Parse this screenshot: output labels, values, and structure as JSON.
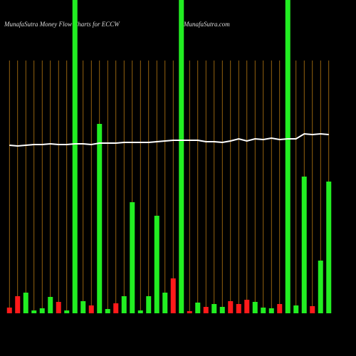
{
  "chart_data": {
    "type": "bar",
    "title": "MunafaSutra  Money Flow  Charts for ECCW",
    "subtitle": "MunafaSutra.com",
    "categories": [
      null,
      null,
      null,
      null,
      null,
      null,
      null,
      null,
      null,
      null,
      null,
      null,
      null,
      null,
      null,
      null,
      null,
      null,
      null,
      null,
      null,
      null,
      null,
      null,
      null,
      null,
      null,
      null,
      null,
      null,
      null,
      null,
      null,
      null,
      null,
      null,
      null,
      null,
      null,
      null
    ],
    "values": [
      8,
      24,
      29,
      4,
      7,
      23,
      16,
      4,
      440,
      17,
      11,
      266,
      6,
      14,
      24,
      156,
      4,
      24,
      137,
      29,
      49,
      440,
      3,
      15,
      9,
      13,
      9,
      17,
      13,
      19,
      16,
      8,
      7,
      13,
      440,
      11,
      192,
      10,
      74,
      185
    ],
    "colors": [
      "#ff1a1a",
      "#ff1a1a",
      "#22ee22",
      "#22ee22",
      "#22ee22",
      "#22ee22",
      "#ff1a1a",
      "#22ee22",
      "#22ee22",
      "#22ee22",
      "#ff1a1a",
      "#22ee22",
      "#22ee22",
      "#ff1a1a",
      "#22ee22",
      "#22ee22",
      "#22ee22",
      "#22ee22",
      "#22ee22",
      "#22ee22",
      "#ff1a1a",
      "#22ee22",
      "#ff1a1a",
      "#22ee22",
      "#ff1a1a",
      "#22ee22",
      "#22ee22",
      "#ff1a1a",
      "#ff1a1a",
      "#ff1a1a",
      "#22ee22",
      "#22ee22",
      "#22ee22",
      "#ff1a1a",
      "#22ee22",
      "#22ee22",
      "#22ee22",
      "#ff1a1a",
      "#22ee22",
      "#22ee22"
    ],
    "line_values": [
      236,
      235,
      236,
      237,
      237,
      238,
      237,
      237,
      238,
      238,
      237,
      239,
      239,
      239,
      240,
      240,
      240,
      240,
      241,
      242,
      243,
      243,
      243,
      243,
      241,
      241,
      240,
      242,
      245,
      242,
      245,
      244,
      246,
      244,
      245,
      245,
      252,
      251,
      252,
      251
    ],
    "line_color": "#ffffff",
    "grid_color": "#b87a12",
    "ylim": [
      0,
      440
    ]
  }
}
